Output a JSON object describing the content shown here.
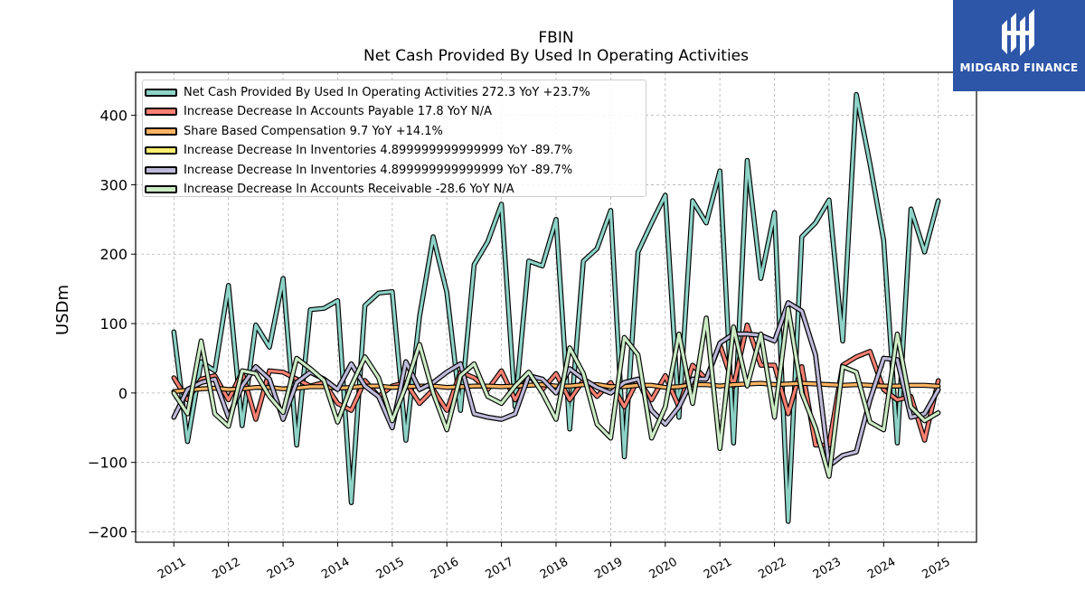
{
  "chart_data": {
    "type": "line",
    "title": "FBIN",
    "subtitle": "Net Cash Provided By Used In Operating Activities",
    "ylabel": "USDm",
    "xlabel": "",
    "ylim": [
      -215,
      462
    ],
    "xlim": [
      2010.3,
      2025.7
    ],
    "yticks": [
      -200,
      -100,
      0,
      100,
      200,
      300,
      400
    ],
    "ytick_labels": [
      "−200",
      "−100",
      "0",
      "100",
      "200",
      "300",
      "400"
    ],
    "xticks": [
      2011,
      2012,
      2013,
      2014,
      2015,
      2016,
      2017,
      2018,
      2019,
      2020,
      2021,
      2022,
      2023,
      2024,
      2025
    ],
    "xtick_labels": [
      "2011",
      "2012",
      "2013",
      "2014",
      "2015",
      "2016",
      "2017",
      "2018",
      "2019",
      "2020",
      "2021",
      "2022",
      "2023",
      "2024",
      "2025"
    ],
    "grid": true,
    "legend_position": "top-left",
    "series": [
      {
        "name": "Net Cash Provided By Used In Operating Activities",
        "legend": "Net Cash Provided By Used In Operating Activities  272.3 YoY +23.7%",
        "color": "#8dd3c7",
        "x": [
          2011.0,
          2011.25,
          2011.5,
          2011.75,
          2012.0,
          2012.25,
          2012.5,
          2012.75,
          2013.0,
          2013.25,
          2013.5,
          2013.75,
          2014.0,
          2014.25,
          2014.5,
          2014.75,
          2015.0,
          2015.25,
          2015.5,
          2015.75,
          2016.0,
          2016.25,
          2016.5,
          2016.75,
          2017.0,
          2017.25,
          2017.5,
          2017.75,
          2018.0,
          2018.25,
          2018.5,
          2018.75,
          2019.0,
          2019.25,
          2019.5,
          2019.75,
          2020.0,
          2020.25,
          2020.5,
          2020.75,
          2021.0,
          2021.25,
          2021.5,
          2021.75,
          2022.0,
          2022.25,
          2022.5,
          2022.75,
          2023.0,
          2023.25,
          2023.5,
          2023.75,
          2024.0,
          2024.25,
          2024.5,
          2024.75,
          2025.0
        ],
        "values": [
          88,
          -70,
          45,
          32,
          155,
          -47,
          98,
          66,
          165,
          -75,
          120,
          122,
          133,
          -158,
          126,
          144,
          146,
          -68,
          110,
          225,
          145,
          -25,
          185,
          218,
          272,
          -20,
          190,
          183,
          250,
          -52,
          190,
          208,
          263,
          -92,
          203,
          245,
          285,
          -35,
          277,
          245,
          320,
          -72,
          335,
          165,
          260,
          -185,
          225,
          245,
          278,
          75,
          430,
          330,
          220,
          -72,
          265,
          203,
          277
        ]
      },
      {
        "name": "Increase Decrease In Accounts Payable",
        "legend": "Increase Decrease In Accounts Payable  17.8 YoY N/A",
        "color": "#fb8072",
        "x": [
          2011.0,
          2011.25,
          2011.5,
          2011.75,
          2012.0,
          2012.25,
          2012.5,
          2012.75,
          2013.0,
          2013.25,
          2013.5,
          2013.75,
          2014.0,
          2014.25,
          2014.5,
          2014.75,
          2015.0,
          2015.25,
          2015.5,
          2015.75,
          2016.0,
          2016.25,
          2016.5,
          2016.75,
          2017.0,
          2017.25,
          2017.5,
          2017.75,
          2018.0,
          2018.25,
          2018.5,
          2018.75,
          2019.0,
          2019.25,
          2019.5,
          2019.75,
          2020.0,
          2020.25,
          2020.5,
          2020.75,
          2021.0,
          2021.25,
          2021.5,
          2021.75,
          2022.0,
          2022.25,
          2022.5,
          2022.75,
          2023.0,
          2023.25,
          2023.5,
          2023.75,
          2024.0,
          2024.25,
          2024.5,
          2024.75,
          2025.0
        ],
        "values": [
          22,
          -10,
          20,
          25,
          -10,
          30,
          -38,
          32,
          30,
          20,
          10,
          15,
          -15,
          -25,
          18,
          -5,
          10,
          15,
          -15,
          5,
          -25,
          30,
          22,
          5,
          32,
          -10,
          25,
          5,
          28,
          -10,
          18,
          -5,
          15,
          -20,
          20,
          -10,
          25,
          -20,
          40,
          20,
          70,
          10,
          98,
          40,
          40,
          -30,
          38,
          -75,
          -75,
          40,
          52,
          60,
          5,
          -10,
          -5,
          -68,
          17.8
        ]
      },
      {
        "name": "Share Based Compensation",
        "legend": "Share Based Compensation  9.7 YoY +14.1%",
        "color": "#fdb462",
        "x": [
          2011.0,
          2011.25,
          2011.5,
          2011.75,
          2012.0,
          2012.25,
          2012.5,
          2012.75,
          2013.0,
          2013.25,
          2013.5,
          2013.75,
          2014.0,
          2014.25,
          2014.5,
          2014.75,
          2015.0,
          2015.25,
          2015.5,
          2015.75,
          2016.0,
          2016.25,
          2016.5,
          2016.75,
          2017.0,
          2017.25,
          2017.5,
          2017.75,
          2018.0,
          2018.25,
          2018.5,
          2018.75,
          2019.0,
          2019.25,
          2019.5,
          2019.75,
          2020.0,
          2020.25,
          2020.5,
          2020.75,
          2021.0,
          2021.25,
          2021.5,
          2021.75,
          2022.0,
          2022.25,
          2022.5,
          2022.75,
          2023.0,
          2023.25,
          2023.5,
          2023.75,
          2024.0,
          2024.25,
          2024.5,
          2024.75,
          2025.0
        ],
        "values": [
          2,
          4,
          6,
          7,
          5,
          6,
          8,
          8,
          6,
          7,
          9,
          9,
          7,
          8,
          10,
          10,
          8,
          9,
          10,
          10,
          8,
          9,
          10,
          10,
          9,
          10,
          11,
          12,
          10,
          10,
          12,
          12,
          9,
          9,
          11,
          11,
          8,
          9,
          12,
          12,
          10,
          12,
          13,
          14,
          12,
          13,
          14,
          13,
          12,
          11,
          12,
          11,
          10,
          10,
          11,
          11,
          9.7
        ]
      },
      {
        "name": "Increase Decrease In Inventories",
        "legend": "Increase Decrease In Inventories  4.899999999999999 YoY -89.7%",
        "color": "#ffed6f",
        "x": [
          2011.0,
          2011.25,
          2011.5,
          2011.75,
          2012.0,
          2012.25,
          2012.5,
          2012.75,
          2013.0,
          2013.25,
          2013.5,
          2013.75,
          2014.0,
          2014.25,
          2014.5,
          2014.75,
          2015.0,
          2015.25,
          2015.5,
          2015.75,
          2016.0,
          2016.25,
          2016.5,
          2016.75,
          2017.0,
          2017.25,
          2017.5,
          2017.75,
          2018.0,
          2018.25,
          2018.5,
          2018.75,
          2019.0,
          2019.25,
          2019.5,
          2019.75,
          2020.0,
          2020.25,
          2020.5,
          2020.75,
          2021.0,
          2021.25,
          2021.5,
          2021.75,
          2022.0,
          2022.25,
          2022.5,
          2022.75,
          2023.0,
          2023.25,
          2023.5,
          2023.75,
          2024.0,
          2024.25,
          2024.5,
          2024.75,
          2025.0
        ],
        "values": [
          -35,
          5,
          15,
          20,
          -35,
          10,
          38,
          20,
          -38,
          15,
          30,
          20,
          5,
          42,
          10,
          -5,
          -50,
          45,
          5,
          15,
          30,
          42,
          -30,
          -35,
          -38,
          -30,
          25,
          20,
          0,
          35,
          20,
          8,
          0,
          15,
          20,
          -25,
          -45,
          -20,
          20,
          20,
          72,
          85,
          85,
          83,
          75,
          130,
          118,
          55,
          -105,
          -90,
          -85,
          -10,
          50,
          48,
          -35,
          -30,
          4.9
        ]
      },
      {
        "name": "Increase Decrease In Inventories",
        "legend": "Increase Decrease In Inventories  4.899999999999999 YoY -89.7%",
        "color": "#bebada",
        "x": [
          2011.0,
          2011.25,
          2011.5,
          2011.75,
          2012.0,
          2012.25,
          2012.5,
          2012.75,
          2013.0,
          2013.25,
          2013.5,
          2013.75,
          2014.0,
          2014.25,
          2014.5,
          2014.75,
          2015.0,
          2015.25,
          2015.5,
          2015.75,
          2016.0,
          2016.25,
          2016.5,
          2016.75,
          2017.0,
          2017.25,
          2017.5,
          2017.75,
          2018.0,
          2018.25,
          2018.5,
          2018.75,
          2019.0,
          2019.25,
          2019.5,
          2019.75,
          2020.0,
          2020.25,
          2020.5,
          2020.75,
          2021.0,
          2021.25,
          2021.5,
          2021.75,
          2022.0,
          2022.25,
          2022.5,
          2022.75,
          2023.0,
          2023.25,
          2023.5,
          2023.75,
          2024.0,
          2024.25,
          2024.5,
          2024.75,
          2025.0
        ],
        "values": [
          -35,
          5,
          15,
          20,
          -35,
          10,
          38,
          20,
          -38,
          15,
          30,
          20,
          5,
          42,
          10,
          -5,
          -50,
          45,
          5,
          15,
          30,
          42,
          -30,
          -35,
          -38,
          -30,
          25,
          20,
          0,
          35,
          20,
          8,
          0,
          15,
          20,
          -25,
          -45,
          -20,
          20,
          20,
          72,
          85,
          85,
          83,
          75,
          130,
          118,
          55,
          -105,
          -90,
          -85,
          -10,
          50,
          48,
          -35,
          -30,
          4.9
        ]
      },
      {
        "name": "Increase Decrease In Accounts Receivable",
        "legend": "Increase Decrease In Accounts Receivable  -28.6 YoY N/A",
        "color": "#ccebc5",
        "x": [
          2011.0,
          2011.25,
          2011.5,
          2011.75,
          2012.0,
          2012.25,
          2012.5,
          2012.75,
          2013.0,
          2013.25,
          2013.5,
          2013.75,
          2014.0,
          2014.25,
          2014.5,
          2014.75,
          2015.0,
          2015.25,
          2015.5,
          2015.75,
          2016.0,
          2016.25,
          2016.5,
          2016.75,
          2017.0,
          2017.25,
          2017.5,
          2017.75,
          2018.0,
          2018.25,
          2018.5,
          2018.75,
          2019.0,
          2019.25,
          2019.5,
          2019.75,
          2020.0,
          2020.25,
          2020.5,
          2020.75,
          2021.0,
          2021.25,
          2021.5,
          2021.75,
          2022.0,
          2022.25,
          2022.5,
          2022.75,
          2023.0,
          2023.25,
          2023.5,
          2023.75,
          2024.0,
          2024.25,
          2024.5,
          2024.75,
          2025.0
        ],
        "values": [
          0,
          -30,
          75,
          -30,
          -48,
          32,
          28,
          -5,
          -28,
          50,
          35,
          18,
          -42,
          10,
          52,
          22,
          -40,
          10,
          70,
          0,
          -53,
          25,
          42,
          -5,
          -15,
          10,
          30,
          0,
          -38,
          65,
          28,
          -45,
          -65,
          80,
          55,
          -65,
          -20,
          85,
          -15,
          108,
          -80,
          95,
          10,
          85,
          -35,
          122,
          0,
          -50,
          -120,
          38,
          30,
          -42,
          -53,
          85,
          -20,
          -40,
          -28.6
        ]
      }
    ]
  },
  "logo": {
    "text": "MIDGARD FINANCE",
    "color": "#2d55a8"
  }
}
